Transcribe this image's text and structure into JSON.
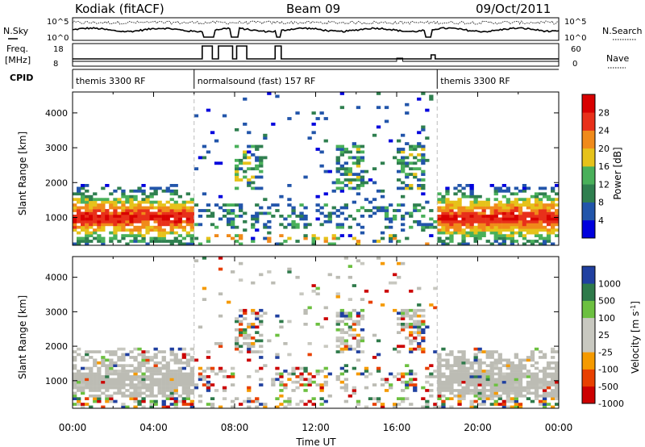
{
  "header": {
    "station": "Kodiak (fitACF)",
    "beam": "Beam 09",
    "date": "09/Oct/2011"
  },
  "panels": {
    "nsky": {
      "label": "N.Sky",
      "ticks": [
        "10^5",
        "10^0"
      ],
      "right_label": "N.Search",
      "right_ticks": [
        "10^5",
        "10^0"
      ]
    },
    "freq": {
      "label_line1": "Freq.",
      "label_line2": "[MHz]",
      "ticks": [
        "18",
        "8"
      ],
      "right_label": "Nave",
      "right_ticks": [
        "60",
        "0"
      ]
    },
    "cpid": {
      "label": "CPID",
      "segments": [
        {
          "name": "themis 3300 RF",
          "start_h": 0,
          "end_h": 6.0
        },
        {
          "name": "normalsound (fast) 157 RF",
          "start_h": 6.0,
          "end_h": 18.0
        },
        {
          "name": "themis 3300 RF",
          "start_h": 18.0,
          "end_h": 24.0
        }
      ]
    }
  },
  "chart_data": [
    {
      "type": "heatmap",
      "quantity": "power",
      "ylabel": "Slant Range [km]",
      "ylim": [
        200,
        4600
      ],
      "yticks": [
        "1000",
        "2000",
        "3000",
        "4000"
      ],
      "xlim": [
        "00:00",
        "24:00"
      ],
      "colorbar": {
        "label": "Power [dB]",
        "ticks": [
          "28",
          "24",
          "20",
          "16",
          "12",
          "8",
          "4"
        ]
      }
    },
    {
      "type": "heatmap",
      "quantity": "velocity",
      "ylabel": "Slant Range [km]",
      "ylim": [
        200,
        4600
      ],
      "yticks": [
        "1000",
        "2000",
        "3000",
        "4000"
      ],
      "xlim": [
        "00:00",
        "24:00"
      ],
      "colorbar": {
        "label": "Velocity [m s",
        "label_sup": "-1",
        "label_close": "]",
        "ticks": [
          "1000",
          "500",
          "100",
          "25",
          "-25",
          "-100",
          "-500",
          "-1000"
        ]
      }
    }
  ],
  "xaxis": {
    "label": "Time UT",
    "ticks": [
      "00:00",
      "04:00",
      "08:00",
      "12:00",
      "16:00",
      "20:00",
      "00:00"
    ]
  },
  "colors": {
    "power_scale": [
      "#0000dd",
      "#2255aa",
      "#2f7f4f",
      "#49b05a",
      "#e6c21a",
      "#f08a1a",
      "#e8301a",
      "#d80000"
    ],
    "velocity_scale": [
      "#cc0000",
      "#e84000",
      "#f59a00",
      "#c8c8c0",
      "#c8c8c0",
      "#6cc040",
      "#2e7a4a",
      "#2040a0"
    ],
    "ground_scatter": "#bcbcb4"
  }
}
